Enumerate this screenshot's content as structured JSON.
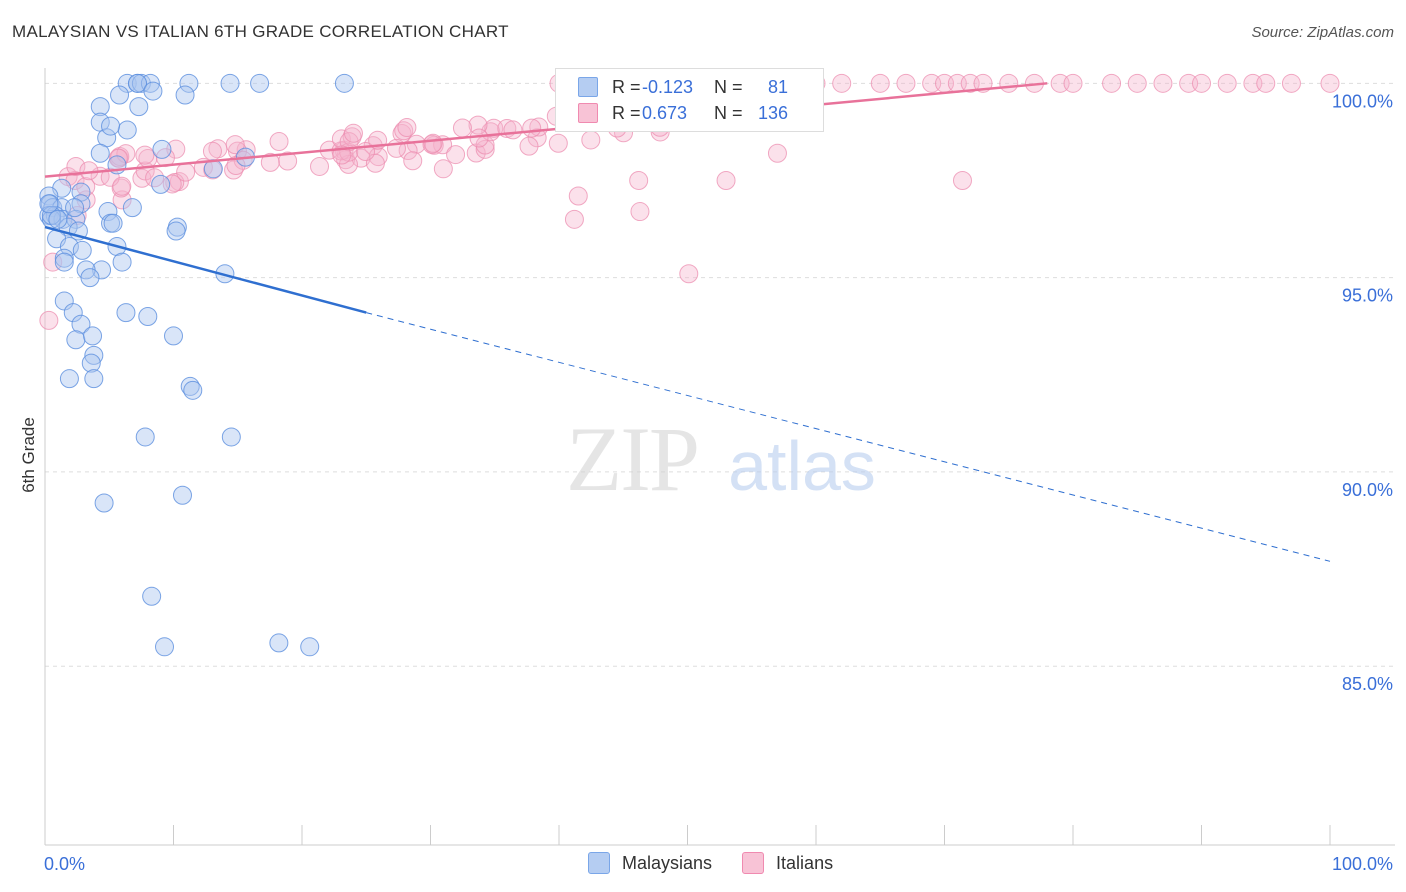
{
  "title": "MALAYSIAN VS ITALIAN 6TH GRADE CORRELATION CHART",
  "source": "Source: ZipAtlas.com",
  "watermark": {
    "zip": "ZIP",
    "atlas": "atlas"
  },
  "legend": {
    "rows": [
      {
        "r_label": "R =",
        "r_value": "-0.123",
        "n_label": "N =",
        "n_value": "81"
      },
      {
        "r_label": "R =",
        "r_value": "0.673",
        "n_label": "N =",
        "n_value": "136"
      }
    ]
  },
  "bottom_legend": {
    "malaysians": "Malaysians",
    "italians": "Italians"
  },
  "chart_data": {
    "type": "scatter",
    "title": "MALAYSIAN VS ITALIAN 6TH GRADE CORRELATION CHART",
    "xlabel": "",
    "ylabel": "6th Grade",
    "xlim": [
      0,
      100
    ],
    "ylim": [
      80.4,
      100.6
    ],
    "x_tick_labels": [
      {
        "x": 0,
        "label": "0.0%"
      },
      {
        "x": 100,
        "label": "100.0%"
      }
    ],
    "y_tick_labels": [
      {
        "y": 100,
        "label": "100.0%"
      },
      {
        "y": 95,
        "label": "95.0%"
      },
      {
        "y": 90,
        "label": "90.0%"
      },
      {
        "y": 85,
        "label": "85.0%"
      }
    ],
    "colors": {
      "malaysians": "#7aa6e8",
      "italians": "#f08ab0",
      "blue_line": "#2f6fd0",
      "pink_line": "#e8729a"
    },
    "series": [
      {
        "name": "Malaysians",
        "r": -0.123,
        "n": 81,
        "trend": {
          "x0": 0,
          "y0": 96.3,
          "x1": 25,
          "y1": 94.1,
          "dash_to_x": 100,
          "dash_to_y": 87.7
        },
        "points": [
          [
            6.4,
            100
          ],
          [
            7.2,
            100
          ],
          [
            7.5,
            100
          ],
          [
            8.2,
            100
          ],
          [
            11.2,
            100
          ],
          [
            14.4,
            100
          ],
          [
            16.7,
            100
          ],
          [
            23.3,
            100
          ],
          [
            7.2,
            100
          ],
          [
            8.4,
            99.8
          ],
          [
            10.9,
            99.7
          ],
          [
            5.8,
            99.7
          ],
          [
            4.3,
            99.4
          ],
          [
            7.3,
            99.4
          ],
          [
            4.3,
            99.0
          ],
          [
            4.8,
            98.6
          ],
          [
            6.4,
            98.8
          ],
          [
            5.1,
            98.9
          ],
          [
            9.1,
            98.3
          ],
          [
            4.3,
            98.2
          ],
          [
            5.6,
            97.9
          ],
          [
            13.1,
            97.8
          ],
          [
            15.6,
            98.1
          ],
          [
            9.0,
            97.4
          ],
          [
            1.3,
            97.3
          ],
          [
            2.8,
            97.2
          ],
          [
            0.3,
            97.1
          ],
          [
            0.4,
            96.9
          ],
          [
            0.6,
            96.8
          ],
          [
            1.3,
            96.8
          ],
          [
            2.8,
            96.9
          ],
          [
            0.3,
            96.6
          ],
          [
            0.8,
            96.6
          ],
          [
            1.4,
            96.5
          ],
          [
            2.4,
            96.5
          ],
          [
            4.9,
            96.7
          ],
          [
            0.5,
            96.5
          ],
          [
            1.8,
            96.3
          ],
          [
            2.6,
            96.2
          ],
          [
            5.1,
            96.4
          ],
          [
            5.3,
            96.4
          ],
          [
            10.3,
            96.3
          ],
          [
            10.2,
            96.2
          ],
          [
            0.9,
            96.0
          ],
          [
            1.9,
            95.8
          ],
          [
            2.9,
            95.7
          ],
          [
            1.5,
            95.5
          ],
          [
            5.6,
            95.8
          ],
          [
            6.0,
            95.4
          ],
          [
            1.5,
            95.4
          ],
          [
            4.4,
            95.2
          ],
          [
            3.2,
            95.2
          ],
          [
            3.5,
            95.0
          ],
          [
            14.0,
            95.1
          ],
          [
            1.5,
            94.4
          ],
          [
            2.2,
            94.1
          ],
          [
            6.3,
            94.1
          ],
          [
            8.0,
            94.0
          ],
          [
            2.8,
            93.8
          ],
          [
            10.0,
            93.5
          ],
          [
            2.4,
            93.4
          ],
          [
            3.7,
            93.5
          ],
          [
            3.8,
            93.0
          ],
          [
            3.6,
            92.8
          ],
          [
            1.9,
            92.4
          ],
          [
            3.8,
            92.4
          ],
          [
            11.3,
            92.2
          ],
          [
            11.5,
            92.1
          ],
          [
            7.8,
            90.9
          ],
          [
            14.5,
            90.9
          ],
          [
            4.6,
            89.2
          ],
          [
            10.7,
            89.4
          ],
          [
            8.3,
            86.8
          ],
          [
            9.3,
            85.5
          ],
          [
            18.2,
            85.6
          ],
          [
            20.6,
            85.5
          ],
          [
            0.5,
            96.6
          ],
          [
            0.3,
            96.9
          ],
          [
            1.0,
            96.5
          ],
          [
            6.8,
            96.8
          ],
          [
            2.3,
            96.8
          ]
        ]
      },
      {
        "name": "Italians",
        "r": 0.673,
        "n": 136,
        "trend": {
          "x0": 0,
          "y0": 97.6,
          "x1": 78,
          "y1": 100
        }
      }
    ]
  }
}
